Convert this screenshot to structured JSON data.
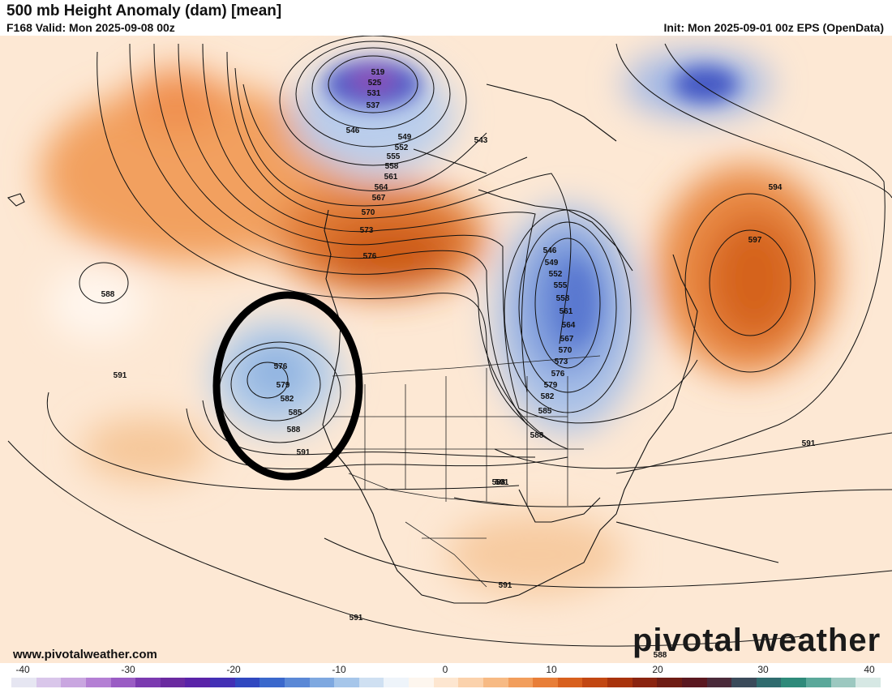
{
  "header": {
    "title": "500 mb Height Anomaly (dam) [mean]",
    "valid": "F168 Valid: Mon 2025-09-08 00z",
    "init": "Init: Mon 2025-09-01 00z EPS (OpenData)"
  },
  "footer": {
    "website": "www.pivotalweather.com",
    "logo_text": "pivotal weather"
  },
  "colorbar": {
    "ticks": [
      "-40",
      "-30",
      "-20",
      "-10",
      "0",
      "10",
      "20",
      "30",
      "40"
    ],
    "colors": [
      "#e6e6f2",
      "#d9c6ea",
      "#c9a6e0",
      "#b47fd4",
      "#9a5cc4",
      "#7b3ab0",
      "#6a2aa0",
      "#5a23a8",
      "#4330b5",
      "#3048c0",
      "#3a68cc",
      "#5a88d6",
      "#7ea8e0",
      "#a6c6ea",
      "#cfe0f2",
      "#eef4fa",
      "#fdf6ee",
      "#fde6d0",
      "#fbd2ac",
      "#f7ba84",
      "#f29e5c",
      "#e87e38",
      "#d8601e",
      "#c24712",
      "#a8330c",
      "#8a2410",
      "#6e1c14",
      "#5a1820",
      "#4a2a3a",
      "#3a4a5a",
      "#2f6b6e",
      "#2e8a7a",
      "#5aa89a",
      "#9cc8c0",
      "#d6e8e4"
    ]
  },
  "contours": {
    "labels": [
      {
        "text": "519"
      },
      {
        "text": "525"
      },
      {
        "text": "531"
      },
      {
        "text": "537"
      },
      {
        "text": "546"
      },
      {
        "text": "549"
      },
      {
        "text": "552"
      },
      {
        "text": "555"
      },
      {
        "text": "558"
      },
      {
        "text": "561"
      },
      {
        "text": "564"
      },
      {
        "text": "567"
      },
      {
        "text": "570"
      },
      {
        "text": "573"
      },
      {
        "text": "576"
      },
      {
        "text": "543"
      },
      {
        "text": "588"
      },
      {
        "text": "576"
      },
      {
        "text": "579"
      },
      {
        "text": "582"
      },
      {
        "text": "585"
      },
      {
        "text": "588"
      },
      {
        "text": "591"
      },
      {
        "text": "591"
      },
      {
        "text": "546"
      },
      {
        "text": "549"
      },
      {
        "text": "552"
      },
      {
        "text": "555"
      },
      {
        "text": "558"
      },
      {
        "text": "561"
      },
      {
        "text": "564"
      },
      {
        "text": "567"
      },
      {
        "text": "570"
      },
      {
        "text": "573"
      },
      {
        "text": "576"
      },
      {
        "text": "579"
      },
      {
        "text": "582"
      },
      {
        "text": "585"
      },
      {
        "text": "588"
      },
      {
        "text": "591"
      },
      {
        "text": "594"
      },
      {
        "text": "597"
      },
      {
        "text": "591"
      },
      {
        "text": "591"
      },
      {
        "text": "591"
      },
      {
        "text": "588"
      },
      {
        "text": "588"
      }
    ]
  }
}
